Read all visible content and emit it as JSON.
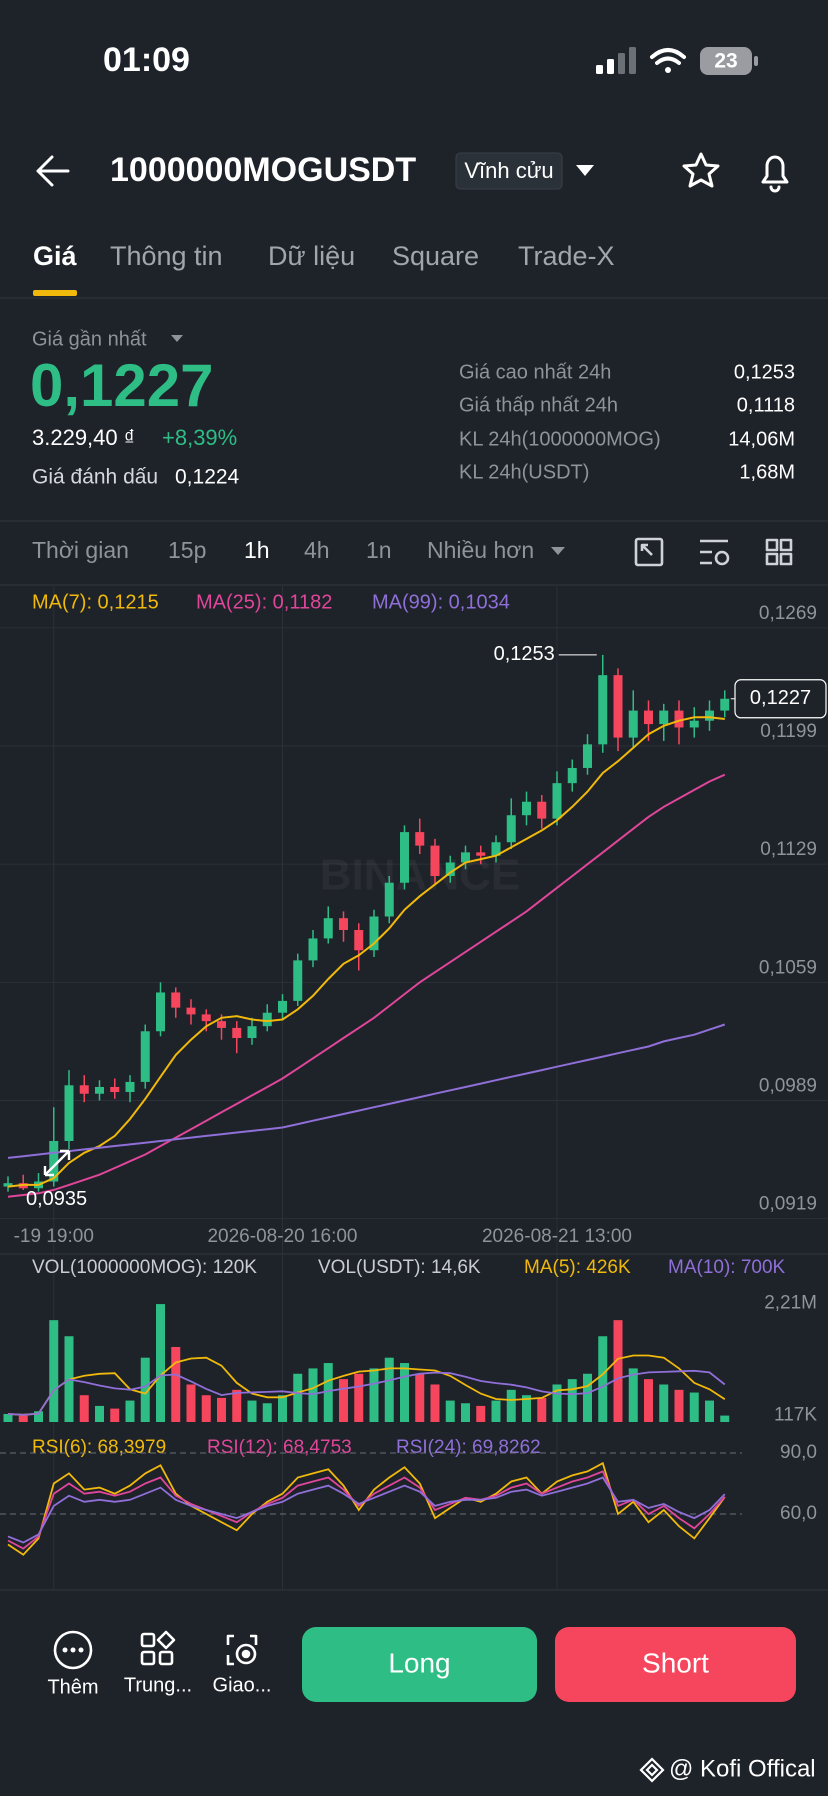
{
  "status_bar": {
    "time": "01:09",
    "battery": "23"
  },
  "header": {
    "title": "1000000MOGUSDT",
    "badge": "Vĩnh cửu"
  },
  "tabs": [
    "Giá",
    "Thông tin",
    "Dữ liệu",
    "Square",
    "Trade-X"
  ],
  "price": {
    "label": "Giá gần nhất",
    "last": "0,1227",
    "fiat": "3.229,40 ₫",
    "change": "+8,39%",
    "mark_label": "Giá đánh dấu",
    "mark": "0,1224"
  },
  "stats": [
    {
      "label": "Giá cao nhất 24h",
      "value": "0,1253"
    },
    {
      "label": "Giá thấp nhất 24h",
      "value": "0,1118"
    },
    {
      "label": "KL 24h(1000000MOG)",
      "value": "14,06M"
    },
    {
      "label": "KL 24h(USDT)",
      "value": "1,68M"
    }
  ],
  "timeframes": [
    "Thời gian",
    "15p",
    "1h",
    "4h",
    "1n",
    "Nhiều hơn"
  ],
  "chart_data": {
    "type": "candlestick",
    "watermark": "BINANCE",
    "up_color": "#2ebd85",
    "down_color": "#f6465d",
    "categories": [
      null,
      null,
      null,
      "-19 19:00",
      null,
      null,
      null,
      null,
      null,
      null,
      null,
      null,
      null,
      null,
      null,
      null,
      null,
      null,
      "2026-08-20 16:00",
      null,
      null,
      null,
      null,
      null,
      null,
      null,
      null,
      null,
      null,
      null,
      null,
      null,
      null,
      null,
      null,
      null,
      "2026-08-21 13:00",
      null,
      null,
      null,
      null,
      null,
      null,
      null,
      null,
      null,
      null,
      null
    ],
    "open": [
      0.0938,
      0.094,
      0.0937,
      0.0941,
      0.0965,
      0.0998,
      0.0993,
      0.0997,
      0.0994,
      0.1,
      0.103,
      0.1053,
      0.1044,
      0.104,
      0.1036,
      0.1032,
      0.1026,
      0.1033,
      0.1041,
      0.1048,
      0.1072,
      0.1085,
      0.1097,
      0.109,
      0.1078,
      0.1098,
      0.1118,
      0.1148,
      0.114,
      0.1122,
      0.113,
      0.1136,
      0.1134,
      0.1142,
      0.1158,
      0.1166,
      0.1156,
      0.1177,
      0.1186,
      0.12,
      0.1241,
      0.1204,
      0.122,
      0.1212,
      0.122,
      0.121,
      0.1214,
      0.122
    ],
    "high": [
      0.0944,
      0.0945,
      0.0946,
      0.0985,
      0.1007,
      0.1004,
      0.1001,
      0.1002,
      0.1004,
      0.1034,
      0.1059,
      0.1056,
      0.1049,
      0.1043,
      0.104,
      0.1036,
      0.1038,
      0.1046,
      0.1052,
      0.1076,
      0.109,
      0.1104,
      0.1101,
      0.1094,
      0.1102,
      0.1122,
      0.1152,
      0.1156,
      0.1144,
      0.1134,
      0.114,
      0.114,
      0.1146,
      0.1168,
      0.1172,
      0.117,
      0.1184,
      0.1191,
      0.1206,
      0.1253,
      0.1245,
      0.1232,
      0.1226,
      0.1224,
      0.1226,
      0.1222,
      0.1226,
      0.1232
    ],
    "low": [
      0.0935,
      0.0936,
      0.0935,
      0.0938,
      0.096,
      0.0988,
      0.0989,
      0.099,
      0.0988,
      0.0996,
      0.1027,
      0.1038,
      0.1034,
      0.103,
      0.1025,
      0.1017,
      0.1022,
      0.103,
      0.1037,
      0.1045,
      0.1068,
      0.1082,
      0.1083,
      0.1066,
      0.1074,
      0.1094,
      0.1114,
      0.1135,
      0.1117,
      0.1118,
      0.1126,
      0.1129,
      0.113,
      0.1138,
      0.1152,
      0.115,
      0.1152,
      0.1172,
      0.1182,
      0.1195,
      0.1196,
      0.1198,
      0.1202,
      0.1202,
      0.12,
      0.1204,
      0.1208,
      0.1216
    ],
    "close": [
      0.094,
      0.0937,
      0.0941,
      0.0965,
      0.0998,
      0.0993,
      0.0997,
      0.0994,
      0.1,
      0.103,
      0.1053,
      0.1044,
      0.104,
      0.1036,
      0.1032,
      0.1026,
      0.1033,
      0.1041,
      0.1048,
      0.1072,
      0.1085,
      0.1097,
      0.109,
      0.1078,
      0.1098,
      0.1118,
      0.1148,
      0.114,
      0.1122,
      0.113,
      0.1136,
      0.1134,
      0.1142,
      0.1158,
      0.1166,
      0.1156,
      0.1177,
      0.1186,
      0.12,
      0.1241,
      0.1204,
      0.122,
      0.1212,
      0.122,
      0.121,
      0.1214,
      0.122,
      0.1227
    ],
    "series": [
      {
        "name": "MA(7): 0,1215",
        "color": "#f0b90b",
        "values": [
          0.0938,
          0.0939,
          0.0939,
          0.0943,
          0.0952,
          0.0958,
          0.0962,
          0.0968,
          0.0978,
          0.099,
          0.1003,
          0.1016,
          0.1025,
          0.1033,
          0.1038,
          0.1039,
          0.1037,
          0.1036,
          0.1037,
          0.1043,
          0.1051,
          0.1061,
          0.107,
          0.1075,
          0.1082,
          0.1091,
          0.1102,
          0.111,
          0.1117,
          0.1124,
          0.113,
          0.1132,
          0.1134,
          0.1139,
          0.1144,
          0.1149,
          0.1155,
          0.1163,
          0.1172,
          0.1183,
          0.119,
          0.1198,
          0.1206,
          0.1211,
          0.1214,
          0.1216,
          0.1216,
          0.1215
        ]
      },
      {
        "name": "MA(25): 0,1182",
        "color": "#e0469a",
        "values": [
          0.0932,
          0.0933,
          0.0934,
          0.0936,
          0.0939,
          0.0942,
          0.0945,
          0.0949,
          0.0953,
          0.0957,
          0.0962,
          0.0967,
          0.0972,
          0.0977,
          0.0982,
          0.0987,
          0.0992,
          0.0997,
          0.1002,
          0.1008,
          0.1014,
          0.102,
          0.1026,
          0.1032,
          0.1038,
          0.1045,
          0.1052,
          0.1059,
          0.1065,
          0.1071,
          0.1077,
          0.1083,
          0.1089,
          0.1095,
          0.1101,
          0.1108,
          0.1115,
          0.1122,
          0.1129,
          0.1136,
          0.1143,
          0.115,
          0.1157,
          0.1163,
          0.1168,
          0.1173,
          0.1178,
          0.1182
        ]
      },
      {
        "name": "MA(99): 0,1034",
        "color": "#8f6fd8",
        "values": [
          0.0955,
          0.0956,
          0.0957,
          0.0958,
          0.0959,
          0.096,
          0.0961,
          0.0962,
          0.0963,
          0.0964,
          0.0965,
          0.0966,
          0.0967,
          0.0968,
          0.0969,
          0.097,
          0.0971,
          0.0972,
          0.0973,
          0.0975,
          0.0977,
          0.0979,
          0.0981,
          0.0983,
          0.0985,
          0.0987,
          0.0989,
          0.0991,
          0.0993,
          0.0995,
          0.0997,
          0.0999,
          0.1001,
          0.1003,
          0.1005,
          0.1007,
          0.1009,
          0.1011,
          0.1013,
          0.1015,
          0.1017,
          0.1019,
          0.1021,
          0.1024,
          0.1026,
          0.1028,
          0.1031,
          0.1034
        ]
      }
    ],
    "ylim": [
      0.0917,
      0.1295
    ],
    "yticks": [
      {
        "value": 0.1269,
        "label": "0,1269"
      },
      {
        "value": 0.1199,
        "label": "0,1199"
      },
      {
        "value": 0.1129,
        "label": "0,1129"
      },
      {
        "value": 0.1059,
        "label": "0,1059"
      },
      {
        "value": 0.0989,
        "label": "0,0989"
      },
      {
        "value": 0.0919,
        "label": "0,0919"
      }
    ],
    "high_label": "0,1253",
    "low_label": "0,0935",
    "last_price_label": "0,1227",
    "volume": {
      "name": "VOL(1000000MOG): 120K",
      "usdt_label": "VOL(USDT): 14,6K",
      "values": [
        150000,
        120000,
        200000,
        1900000,
        1600000,
        500000,
        300000,
        250000,
        400000,
        1200000,
        2200000,
        1400000,
        700000,
        500000,
        450000,
        600000,
        400000,
        350000,
        500000,
        900000,
        1000000,
        1100000,
        800000,
        900000,
        1000000,
        1200000,
        1100000,
        900000,
        700000,
        400000,
        350000,
        300000,
        400000,
        600000,
        500000,
        450000,
        700000,
        800000,
        900000,
        1600000,
        1900000,
        1000000,
        800000,
        700000,
        600000,
        550000,
        400000,
        120000
      ],
      "series": [
        {
          "name": "MA(5): 426K",
          "color": "#f0b90b",
          "values": [
            150000,
            135000,
            157000,
            593000,
            794000,
            864000,
            900000,
            910000,
            610000,
            530000,
            870000,
            1110000,
            1184000,
            1200000,
            1050000,
            730000,
            530000,
            460000,
            460000,
            550000,
            630000,
            770000,
            860000,
            940000,
            960000,
            1000000,
            1000000,
            980000,
            960000,
            860000,
            690000,
            530000,
            430000,
            410000,
            430000,
            450000,
            590000,
            610000,
            670000,
            890000,
            1180000,
            1240000,
            1240000,
            1200000,
            1000000,
            730000,
            610000,
            426000
          ]
        },
        {
          "name": "MA(10): 700K",
          "color": "#8f6fd8",
          "values": [
            150000,
            135000,
            157000,
            593000,
            794000,
            745000,
            681000,
            627000,
            602000,
            662000,
            867000,
            887000,
            757000,
            617000,
            502000,
            542000,
            552000,
            562000,
            572000,
            540000,
            520000,
            577000,
            622000,
            662000,
            717000,
            777000,
            847000,
            902000,
            922000,
            910000,
            845000,
            765000,
            725000,
            695000,
            645000,
            570000,
            530000,
            520000,
            540000,
            660000,
            815000,
            885000,
            925000,
            935000,
            945000,
            955000,
            925000,
            700000
          ]
        }
      ],
      "ylim": [
        0,
        2500000
      ],
      "yticks": [
        {
          "value": 2210000,
          "label": "2,21M"
        },
        {
          "value": 117000,
          "label": "117K"
        }
      ]
    },
    "rsi": {
      "series": [
        {
          "name": "RSI(6): 68,3979",
          "color": "#f0b90b",
          "values": [
            45,
            40,
            48,
            75,
            80,
            72,
            73,
            70,
            74,
            80,
            84,
            70,
            64,
            60,
            56,
            52,
            60,
            66,
            70,
            78,
            80,
            82,
            74,
            62,
            72,
            78,
            83,
            75,
            58,
            63,
            68,
            66,
            70,
            76,
            78,
            70,
            76,
            79,
            81,
            85,
            60,
            66,
            56,
            62,
            54,
            48,
            58,
            68.3979
          ]
        },
        {
          "name": "RSI(12): 68,4753",
          "color": "#e0469a",
          "values": [
            47,
            43,
            49,
            70,
            75,
            70,
            71,
            69,
            71,
            75,
            78,
            69,
            65,
            62,
            59,
            56,
            61,
            65,
            68,
            74,
            76,
            78,
            72,
            64,
            70,
            74,
            78,
            73,
            62,
            65,
            68,
            67,
            69,
            73,
            75,
            70,
            73,
            76,
            78,
            81,
            64,
            67,
            60,
            64,
            58,
            53,
            60,
            68.4753
          ]
        },
        {
          "name": "RSI(24): 69,8262",
          "color": "#8f6fd8",
          "values": [
            49,
            46,
            50,
            64,
            69,
            66,
            67,
            66,
            67,
            70,
            73,
            67,
            64,
            62,
            60,
            58,
            61,
            64,
            66,
            70,
            72,
            74,
            70,
            65,
            68,
            71,
            74,
            71,
            64,
            66,
            67,
            67,
            68,
            71,
            72,
            69,
            71,
            73,
            75,
            78,
            66,
            67,
            63,
            65,
            61,
            58,
            62,
            69.8262
          ]
        }
      ],
      "ylim": [
        24.6,
        97.9
      ],
      "yticks": [
        {
          "value": 90,
          "label": "90,0"
        },
        {
          "value": 60,
          "label": "60,0"
        }
      ]
    }
  },
  "bottom_bar": {
    "actions": [
      "Thêm",
      "Trung...",
      "Giao..."
    ],
    "long": "Long",
    "short": "Short"
  },
  "footer": "@ Kofi Offical"
}
